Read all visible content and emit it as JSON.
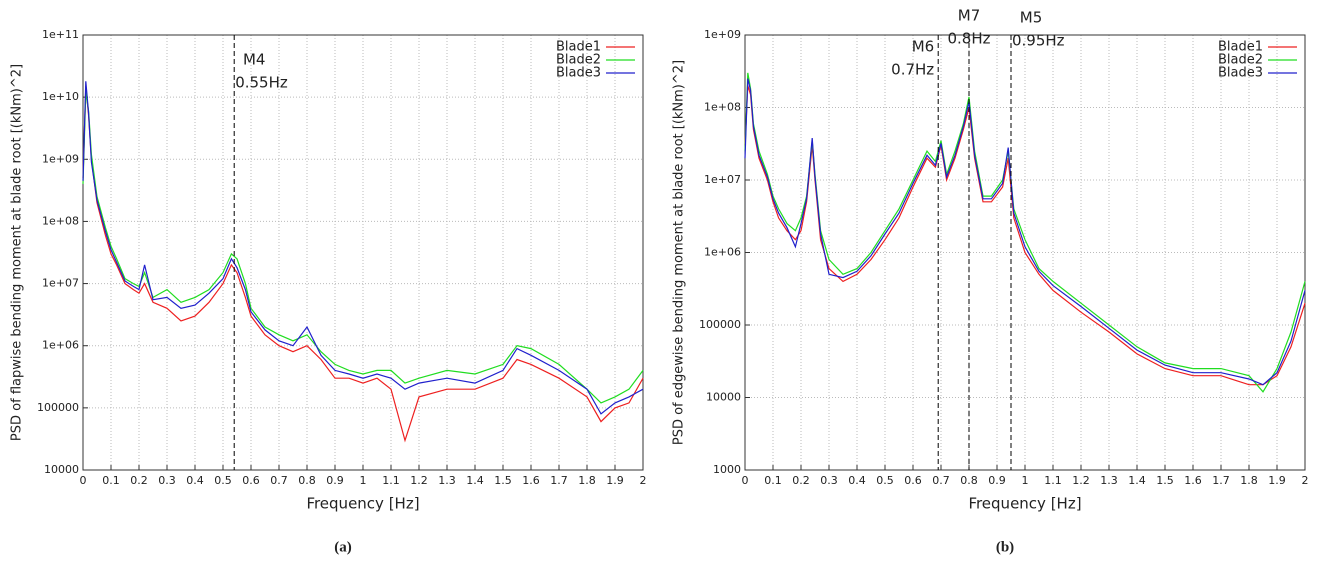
{
  "chart_data": [
    {
      "type": "line",
      "caption": "(a)",
      "xlabel": "Frequency [Hz]",
      "ylabel": "PSD of flapwise bending moment at blade root [(kNm)^2]",
      "log_y": true,
      "grid": true,
      "legend": "top-right",
      "xlim": [
        0,
        2
      ],
      "xticks": [
        0,
        0.1,
        0.2,
        0.3,
        0.4,
        0.5,
        0.6,
        0.7,
        0.8,
        0.9,
        1,
        1.1,
        1.2,
        1.3,
        1.4,
        1.5,
        1.6,
        1.7,
        1.8,
        1.9,
        2
      ],
      "ylim": [
        10000,
        100000000000
      ],
      "yticks": [
        {
          "value": 100000000000,
          "label": "1e+11"
        },
        {
          "value": 10000000000,
          "label": "1e+10"
        },
        {
          "value": 1000000000,
          "label": "1e+09"
        },
        {
          "value": 100000000,
          "label": "1e+08"
        },
        {
          "value": 10000000,
          "label": "1e+07"
        },
        {
          "value": 1000000,
          "label": "1e+06"
        },
        100000,
        10000
      ],
      "annotations": [
        {
          "x": 0.54,
          "label": "M4",
          "sublabel": "0.55Hz",
          "side": "right"
        }
      ],
      "x": [
        0,
        0.01,
        0.02,
        0.03,
        0.05,
        0.08,
        0.1,
        0.12,
        0.15,
        0.18,
        0.2,
        0.22,
        0.25,
        0.3,
        0.35,
        0.4,
        0.45,
        0.5,
        0.53,
        0.55,
        0.58,
        0.6,
        0.65,
        0.7,
        0.75,
        0.8,
        0.85,
        0.9,
        0.95,
        1.0,
        1.05,
        1.1,
        1.15,
        1.2,
        1.3,
        1.4,
        1.5,
        1.55,
        1.6,
        1.7,
        1.8,
        1.85,
        1.9,
        1.95,
        2.0
      ],
      "series": [
        {
          "name": "Blade1",
          "color": "#ee2020",
          "values": [
            500000000,
            15000000000,
            5000000000,
            1000000000,
            200000000,
            60000000,
            30000000,
            20000000,
            10000000,
            8000000,
            7000000,
            10000000,
            5000000,
            4000000,
            2500000,
            3000000,
            5000000,
            10000000,
            20000000,
            15000000,
            6000000,
            3000000,
            1500000,
            1000000,
            800000,
            1000000,
            600000,
            300000,
            300000,
            250000,
            300000,
            200000,
            30000,
            150000,
            200000,
            200000,
            300000,
            600000,
            500000,
            300000,
            150000,
            60000,
            100000,
            120000,
            300000
          ]
        },
        {
          "name": "Blade2",
          "color": "#20dd20",
          "values": [
            400000000,
            12000000000,
            6000000000,
            1200000000,
            250000000,
            80000000,
            40000000,
            25000000,
            12000000,
            10000000,
            9000000,
            15000000,
            6000000,
            8000000,
            5000000,
            6000000,
            8000000,
            15000000,
            30000000,
            25000000,
            10000000,
            4000000,
            2000000,
            1500000,
            1200000,
            1500000,
            800000,
            500000,
            400000,
            350000,
            400000,
            400000,
            250000,
            300000,
            400000,
            350000,
            500000,
            1000000,
            900000,
            500000,
            200000,
            120000,
            150000,
            200000,
            400000
          ]
        },
        {
          "name": "Blade3",
          "color": "#2020cc",
          "values": [
            450000000,
            18000000000,
            5500000000,
            900000000,
            220000000,
            70000000,
            35000000,
            22000000,
            11000000,
            9000000,
            8000000,
            20000000,
            5500000,
            6000000,
            4000000,
            4500000,
            7000000,
            12000000,
            25000000,
            18000000,
            8000000,
            3500000,
            1800000,
            1200000,
            1000000,
            2000000,
            700000,
            400000,
            350000,
            300000,
            350000,
            300000,
            200000,
            250000,
            300000,
            250000,
            400000,
            900000,
            700000,
            400000,
            200000,
            80000,
            120000,
            150000,
            200000
          ]
        }
      ]
    },
    {
      "type": "line",
      "caption": "(b)",
      "xlabel": "Frequency [Hz]",
      "ylabel": "PSD of edgewise bending moment at blade root [(kNm)^2]",
      "log_y": true,
      "grid": true,
      "legend": "top-right",
      "xlim": [
        0,
        2
      ],
      "xticks": [
        0,
        0.1,
        0.2,
        0.3,
        0.4,
        0.5,
        0.6,
        0.7,
        0.8,
        0.9,
        1,
        1.1,
        1.2,
        1.3,
        1.4,
        1.5,
        1.6,
        1.7,
        1.8,
        1.9,
        2
      ],
      "ylim": [
        1000,
        1000000000
      ],
      "yticks": [
        {
          "value": 1000000000,
          "label": "1e+09"
        },
        {
          "value": 100000000,
          "label": "1e+08"
        },
        {
          "value": 10000000,
          "label": "1e+07"
        },
        {
          "value": 1000000,
          "label": "1e+06"
        },
        100000,
        10000,
        1000
      ],
      "annotations": [
        {
          "x": 0.69,
          "label": "M6",
          "sublabel": "0.7Hz",
          "side": "left"
        },
        {
          "x": 0.8,
          "label": "M7",
          "sublabel": "0.8Hz",
          "side": "center"
        },
        {
          "x": 0.95,
          "label": "M5",
          "sublabel": "0.95Hz",
          "side": "right"
        }
      ],
      "x": [
        0,
        0.01,
        0.02,
        0.03,
        0.05,
        0.08,
        0.1,
        0.12,
        0.15,
        0.18,
        0.2,
        0.22,
        0.24,
        0.25,
        0.27,
        0.3,
        0.35,
        0.4,
        0.45,
        0.5,
        0.55,
        0.6,
        0.65,
        0.68,
        0.7,
        0.72,
        0.75,
        0.78,
        0.8,
        0.82,
        0.85,
        0.88,
        0.92,
        0.94,
        0.96,
        1.0,
        1.05,
        1.1,
        1.2,
        1.3,
        1.4,
        1.5,
        1.6,
        1.7,
        1.8,
        1.85,
        1.9,
        1.95,
        2.0
      ],
      "series": [
        {
          "name": "Blade1",
          "color": "#ee2020",
          "values": [
            30000000,
            200000000,
            150000000,
            50000000,
            20000000,
            10000000,
            5000000,
            3000000,
            2000000,
            1500000,
            2000000,
            5000000,
            30000000,
            10000000,
            1500000,
            600000,
            400000,
            500000,
            800000,
            1500000,
            3000000,
            8000000,
            20000000,
            15000000,
            30000000,
            10000000,
            20000000,
            50000000,
            100000000,
            20000000,
            5000000,
            5000000,
            8000000,
            20000000,
            3000000,
            1000000,
            500000,
            300000,
            150000,
            80000,
            40000,
            25000,
            20000,
            20000,
            15000,
            15000,
            20000,
            50000,
            200000
          ]
        },
        {
          "name": "Blade2",
          "color": "#20dd20",
          "values": [
            25000000,
            300000000,
            180000000,
            60000000,
            25000000,
            12000000,
            6000000,
            4000000,
            2500000,
            2000000,
            3000000,
            6000000,
            35000000,
            12000000,
            2000000,
            800000,
            500000,
            600000,
            1000000,
            2000000,
            4000000,
            10000000,
            25000000,
            18000000,
            35000000,
            12000000,
            25000000,
            60000000,
            140000000,
            25000000,
            6000000,
            6000000,
            10000000,
            25000000,
            4000000,
            1500000,
            600000,
            400000,
            200000,
            100000,
            50000,
            30000,
            25000,
            25000,
            20000,
            12000,
            25000,
            80000,
            400000
          ]
        },
        {
          "name": "Blade3",
          "color": "#2020cc",
          "values": [
            20000000,
            250000000,
            170000000,
            55000000,
            22000000,
            11000000,
            5500000,
            3500000,
            2200000,
            1200000,
            2500000,
            5500000,
            38000000,
            11000000,
            1800000,
            500000,
            450000,
            550000,
            900000,
            1800000,
            3500000,
            9000000,
            22000000,
            16000000,
            32000000,
            11000000,
            22000000,
            55000000,
            120000000,
            22000000,
            5500000,
            5500000,
            9000000,
            28000000,
            3500000,
            1200000,
            550000,
            350000,
            180000,
            90000,
            45000,
            28000,
            22000,
            22000,
            18000,
            15000,
            22000,
            60000,
            300000
          ]
        }
      ]
    }
  ]
}
